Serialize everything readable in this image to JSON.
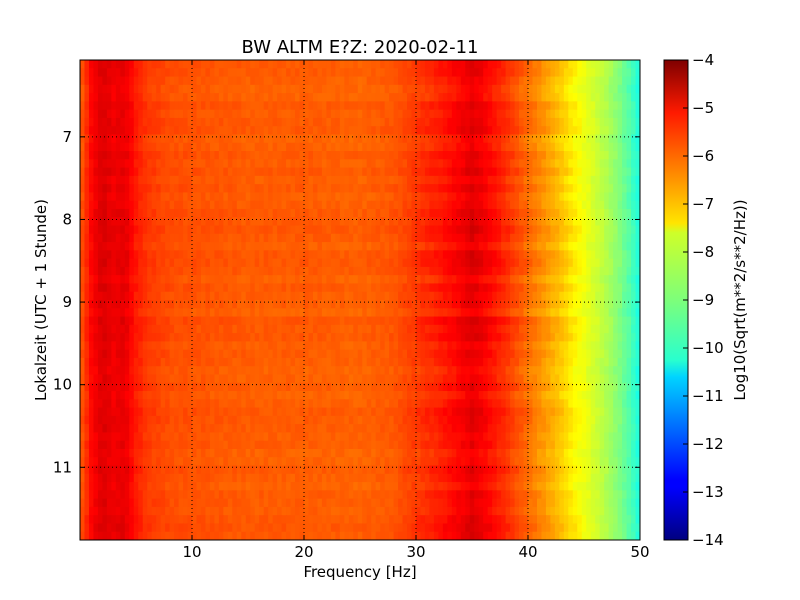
{
  "chart_data": {
    "type": "heatmap",
    "title": "BW ALTM E?Z: 2020-02-11",
    "xlabel": "Frequency [Hz]",
    "ylabel": "Lokalzeit (UTC + 1 Stunde)",
    "xlim": [
      0,
      50
    ],
    "ylim": [
      6.07,
      11.88
    ],
    "y_inverted": true,
    "x_ticks": [
      10,
      20,
      30,
      40,
      50
    ],
    "x_tick_labels": [
      "10",
      "20",
      "30",
      "40",
      "50"
    ],
    "y_ticks": [
      7,
      8,
      9,
      10,
      11
    ],
    "y_tick_labels": [
      "7",
      "8",
      "9",
      "10",
      "11"
    ],
    "grid": true,
    "colormap": "jet",
    "colorbar": {
      "label": "Log10(Sqrt(m**2/s**2/Hz))",
      "range": [
        -14,
        -4
      ],
      "ticks": [
        -4,
        -5,
        -6,
        -7,
        -8,
        -9,
        -10,
        -11,
        -12,
        -13,
        -14
      ],
      "tick_labels": [
        "−4",
        "−5",
        "−6",
        "−7",
        "−8",
        "−9",
        "−10",
        "−11",
        "−12",
        "−13",
        "−14"
      ]
    },
    "spectrum_profile": {
      "frequency_hz": [
        0,
        1,
        2,
        3,
        4,
        5,
        6,
        8,
        10,
        15,
        20,
        25,
        28,
        30,
        32,
        34,
        35,
        36,
        38,
        40,
        41,
        42,
        43,
        44,
        45,
        46,
        47,
        48,
        49,
        50
      ],
      "log10_amplitude": [
        -6.2,
        -5.3,
        -4.9,
        -5.1,
        -5.0,
        -5.5,
        -5.8,
        -6.0,
        -6.05,
        -6.15,
        -6.15,
        -6.2,
        -6.1,
        -5.8,
        -5.55,
        -5.2,
        -5.0,
        -5.2,
        -5.7,
        -6.3,
        -6.6,
        -6.9,
        -7.2,
        -7.6,
        -7.9,
        -8.2,
        -8.5,
        -8.9,
        -9.4,
        -10.0
      ]
    }
  }
}
